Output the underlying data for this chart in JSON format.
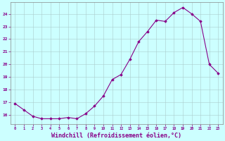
{
  "x": [
    0,
    1,
    2,
    3,
    4,
    5,
    6,
    7,
    8,
    9,
    10,
    11,
    12,
    13,
    14,
    15,
    16,
    17,
    18,
    19,
    20,
    21,
    22,
    23
  ],
  "y": [
    16.9,
    16.4,
    15.9,
    15.7,
    15.7,
    15.7,
    15.8,
    15.7,
    16.1,
    16.7,
    17.5,
    18.8,
    19.2,
    20.4,
    21.8,
    22.6,
    23.5,
    23.4,
    24.1,
    24.5,
    24.0,
    23.4,
    20.0,
    19.3
  ],
  "line_color": "#880088",
  "marker": "D",
  "markersize": 1.8,
  "linewidth": 0.8,
  "xlabel": "Windchill (Refroidissement éolien,°C)",
  "xlabel_fontsize": 6.0,
  "ylabel_ticks": [
    16,
    17,
    18,
    19,
    20,
    21,
    22,
    23,
    24
  ],
  "xtick_labels": [
    "0",
    "1",
    "2",
    "3",
    "4",
    "5",
    "6",
    "7",
    "8",
    "9",
    "10",
    "11",
    "12",
    "13",
    "14",
    "15",
    "16",
    "17",
    "18",
    "19",
    "20",
    "21",
    "22",
    "23"
  ],
  "ylim": [
    15.3,
    24.9
  ],
  "xlim": [
    -0.5,
    23.5
  ],
  "bg_color": "#ccffff",
  "grid_color": "#aacccc",
  "tick_color": "#880088",
  "spine_color": "#888888"
}
